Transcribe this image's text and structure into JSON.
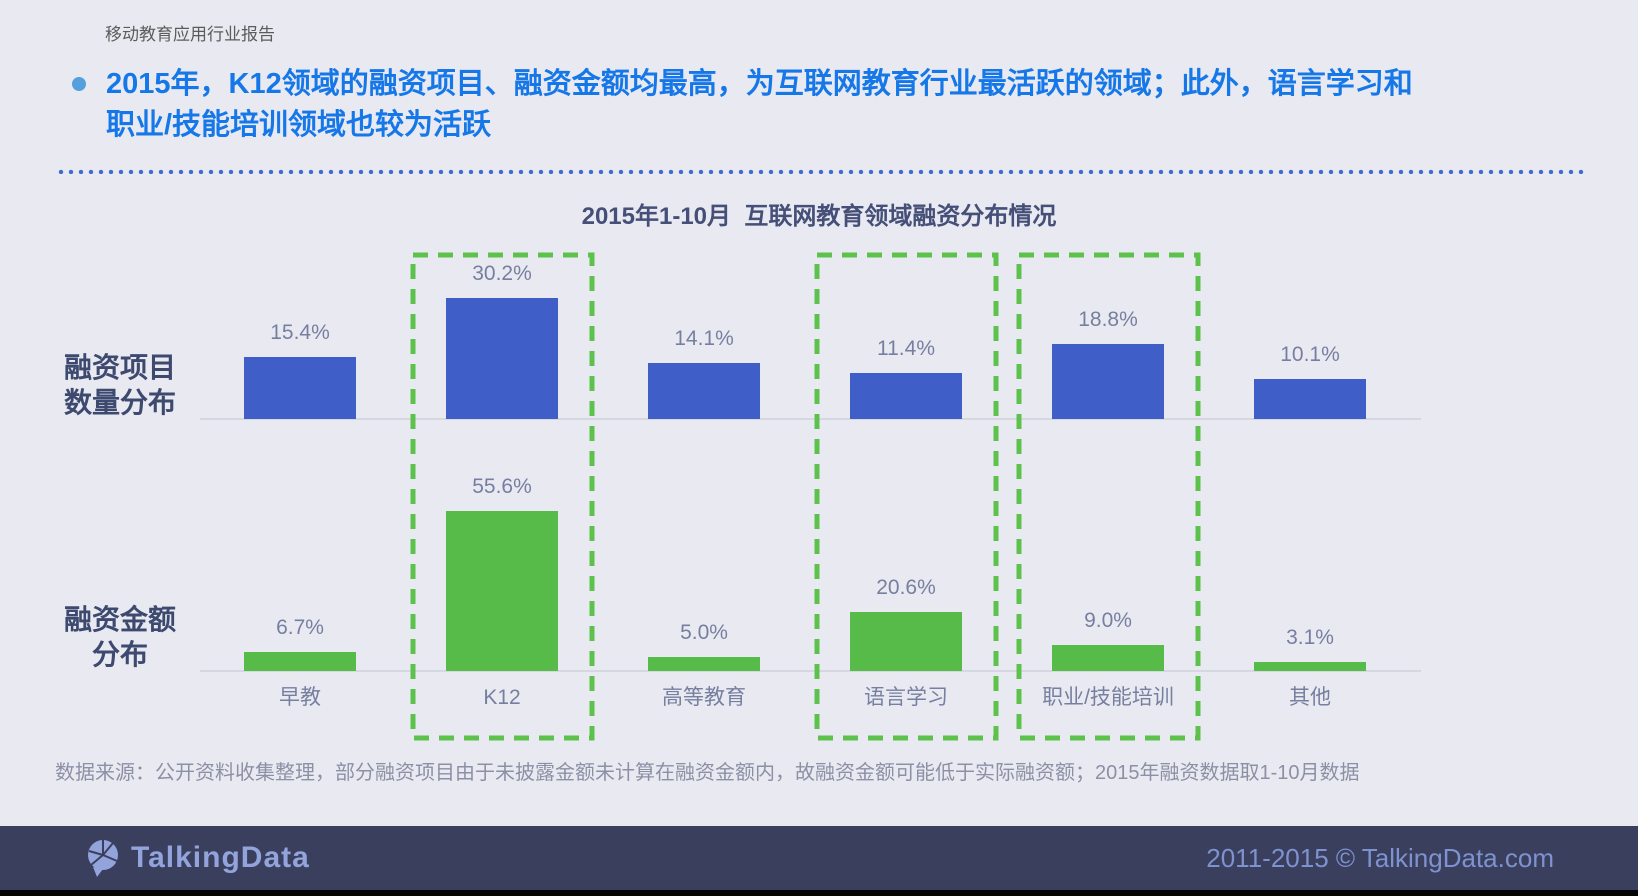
{
  "header": {
    "report_tag": "移动教育应用行业报告",
    "insight_line1": "2015年，K12领域的融资项目、融资金额均最高，为互联网教育行业最活跃的领域；此外，语言学习和",
    "insight_line2": "职业/技能培训领域也较为活跃"
  },
  "chart_data": {
    "type": "bar",
    "orientation": "vertical",
    "title": "2015年1-10月  互联网教育领域融资分布情况",
    "categories": [
      "早教",
      "K12",
      "高等教育",
      "语言学习",
      "职业/技能培训",
      "其他"
    ],
    "series": [
      {
        "name": "融资项目数量分布",
        "name_lines": [
          "融资项目",
          "数量分布"
        ],
        "values": [
          15.4,
          30.2,
          14.1,
          11.4,
          18.8,
          10.1
        ],
        "color": "#3F5EC8"
      },
      {
        "name": "融资金额分布",
        "name_lines": [
          "融资金额",
          "分布"
        ],
        "values": [
          6.7,
          55.6,
          5.0,
          20.6,
          9.0,
          3.1
        ],
        "color": "#56BB48"
      }
    ],
    "value_suffix": "%",
    "highlighted_categories": [
      "K12",
      "语言学习",
      "职业/技能培训"
    ],
    "highlight_color": "#5CC24B",
    "grid": false,
    "legend_position": "left-row-labels",
    "ylim_projects": [
      0,
      32
    ],
    "ylim_amount": [
      0,
      58
    ]
  },
  "source_note": "数据来源：公开资料收集整理，部分融资项目由于未披露金额未计算在融资金额内，故融资金额可能低于实际融资额；2015年融资数据取1-10月数据",
  "footer": {
    "brand": "TalkingData",
    "copyright": "2011-2015 © TalkingData.com"
  },
  "colors": {
    "background": "#E9EAF1",
    "accent_blue_text": "#1678E8",
    "bar_blue": "#3F5EC8",
    "bar_green": "#56BB48",
    "highlight_dash_green": "#5CC24B",
    "title_dark": "#454F78",
    "label_gray": "#777FA0",
    "footer_bg": "#3A3F5E",
    "footer_text": "#7E92D0"
  }
}
